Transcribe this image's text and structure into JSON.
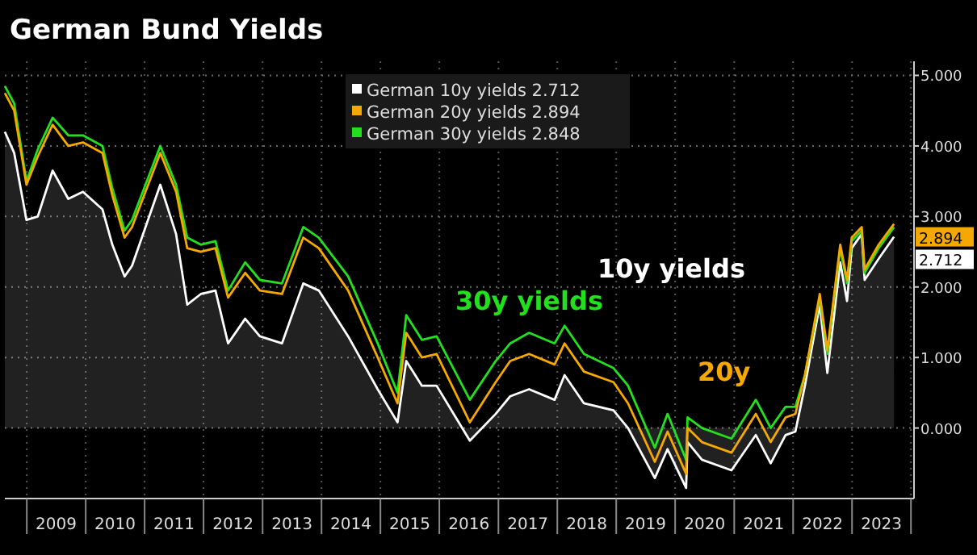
{
  "chart_data": {
    "type": "line",
    "title": "German Bund Yields",
    "x": [
      "2008-08-18",
      "2008-10-15",
      "2008-12-30",
      "2009-03-10",
      "2009-06-10",
      "2009-09-15",
      "2009-12-15",
      "2010-04-15",
      "2010-06-15",
      "2010-08-30",
      "2010-10-15",
      "2011-04-08",
      "2011-07-15",
      "2011-09-22",
      "2011-12-15",
      "2012-03-15",
      "2012-06-01",
      "2012-09-15",
      "2012-12-15",
      "2013-05-01",
      "2013-09-10",
      "2013-12-15",
      "2014-06-15",
      "2014-12-15",
      "2015-04-17",
      "2015-06-10",
      "2015-09-15",
      "2015-12-15",
      "2016-07-08",
      "2016-12-15",
      "2017-03-15",
      "2017-07-10",
      "2017-12-15",
      "2018-02-15",
      "2018-06-15",
      "2018-12-15",
      "2019-03-15",
      "2019-08-28",
      "2019-11-15",
      "2020-03-09",
      "2020-03-18",
      "2020-06-15",
      "2020-12-15",
      "2021-05-15",
      "2021-08-15",
      "2021-11-15",
      "2022-01-15",
      "2022-03-15",
      "2022-06-15",
      "2022-08-01",
      "2022-10-20",
      "2022-12-01",
      "2022-12-30",
      "2023-03-02",
      "2023-03-20",
      "2023-06-15",
      "2023-09-18"
    ],
    "series": [
      {
        "name": "German 10y yields 2.712",
        "type": "area",
        "color": "#ffffff",
        "values": [
          4.2,
          3.9,
          2.95,
          3.0,
          3.65,
          3.25,
          3.35,
          3.1,
          2.6,
          2.15,
          2.3,
          3.45,
          2.75,
          1.75,
          1.9,
          1.95,
          1.2,
          1.55,
          1.3,
          1.2,
          2.05,
          1.95,
          1.3,
          0.55,
          0.08,
          0.95,
          0.6,
          0.6,
          -0.18,
          0.2,
          0.45,
          0.55,
          0.4,
          0.75,
          0.35,
          0.25,
          0.0,
          -0.71,
          -0.3,
          -0.85,
          -0.2,
          -0.45,
          -0.6,
          -0.1,
          -0.5,
          -0.1,
          -0.05,
          0.6,
          1.75,
          0.78,
          2.35,
          1.8,
          2.55,
          2.75,
          2.1,
          2.4,
          2.712
        ],
        "value_labels": [
          null,
          null,
          null,
          null,
          null,
          null,
          null,
          null,
          null,
          null,
          null,
          null,
          null,
          null,
          null,
          null,
          null,
          null,
          null,
          null,
          null,
          null,
          null,
          null,
          null,
          null,
          null,
          null,
          null,
          null,
          null,
          null,
          null,
          null,
          null,
          null,
          null,
          null,
          null,
          null,
          null,
          null,
          null,
          null,
          null,
          null,
          null,
          null,
          null,
          null,
          null,
          null,
          null,
          null,
          null,
          null,
          "2.712"
        ]
      },
      {
        "name": "German 20y yields 2.894",
        "type": "line",
        "color": "#f5a800",
        "values": [
          4.75,
          4.5,
          3.45,
          3.85,
          4.3,
          4.0,
          4.05,
          3.9,
          3.3,
          2.7,
          2.85,
          3.9,
          3.35,
          2.55,
          2.5,
          2.55,
          1.85,
          2.2,
          1.95,
          1.9,
          2.7,
          2.55,
          1.95,
          1.0,
          0.35,
          1.35,
          1.0,
          1.05,
          0.08,
          0.65,
          0.95,
          1.05,
          0.9,
          1.2,
          0.8,
          0.65,
          0.35,
          -0.48,
          -0.05,
          -0.65,
          0.0,
          -0.2,
          -0.35,
          0.2,
          -0.2,
          0.15,
          0.2,
          0.75,
          1.9,
          1.1,
          2.6,
          2.1,
          2.7,
          2.85,
          2.25,
          2.6,
          2.894
        ],
        "value_labels": [
          null,
          null,
          null,
          null,
          null,
          null,
          null,
          null,
          null,
          null,
          null,
          null,
          null,
          null,
          null,
          null,
          null,
          null,
          null,
          null,
          null,
          null,
          null,
          null,
          null,
          null,
          null,
          null,
          null,
          null,
          null,
          null,
          null,
          null,
          null,
          null,
          null,
          null,
          null,
          null,
          null,
          null,
          null,
          null,
          null,
          null,
          null,
          null,
          null,
          null,
          null,
          null,
          null,
          null,
          null,
          null,
          "2.894"
        ]
      },
      {
        "name": "German 30y yields 2.848",
        "type": "line",
        "color": "#22e01e",
        "values": [
          4.85,
          4.6,
          3.5,
          3.95,
          4.4,
          4.15,
          4.15,
          4.0,
          3.4,
          2.8,
          2.95,
          4.0,
          3.45,
          2.7,
          2.6,
          2.65,
          1.95,
          2.35,
          2.1,
          2.05,
          2.85,
          2.7,
          2.15,
          1.2,
          0.5,
          1.6,
          1.25,
          1.3,
          0.4,
          0.95,
          1.2,
          1.35,
          1.2,
          1.45,
          1.05,
          0.85,
          0.6,
          -0.28,
          0.2,
          -0.45,
          0.15,
          0.0,
          -0.15,
          0.4,
          0.0,
          0.3,
          0.3,
          0.75,
          1.85,
          1.05,
          2.55,
          2.05,
          2.65,
          2.8,
          2.2,
          2.55,
          2.848
        ]
      }
    ],
    "xlim": [
      "2008-08-18",
      "2024-01-20"
    ],
    "xticks": [
      {
        "value": "2009-01-01",
        "label": null
      },
      {
        "value": "2009-07-02",
        "label": "2009"
      },
      {
        "value": "2010-01-01",
        "label": null
      },
      {
        "value": "2010-07-02",
        "label": "2010"
      },
      {
        "value": "2011-01-01",
        "label": null
      },
      {
        "value": "2011-07-02",
        "label": "2011"
      },
      {
        "value": "2012-01-01",
        "label": null
      },
      {
        "value": "2012-07-02",
        "label": "2012"
      },
      {
        "value": "2013-01-01",
        "label": null
      },
      {
        "value": "2013-07-02",
        "label": "2013"
      },
      {
        "value": "2014-01-01",
        "label": null
      },
      {
        "value": "2014-07-02",
        "label": "2014"
      },
      {
        "value": "2015-01-01",
        "label": null
      },
      {
        "value": "2015-07-02",
        "label": "2015"
      },
      {
        "value": "2016-01-01",
        "label": null
      },
      {
        "value": "2016-07-02",
        "label": "2016"
      },
      {
        "value": "2017-01-01",
        "label": null
      },
      {
        "value": "2017-07-02",
        "label": "2017"
      },
      {
        "value": "2018-01-01",
        "label": null
      },
      {
        "value": "2018-07-02",
        "label": "2018"
      },
      {
        "value": "2019-01-01",
        "label": null
      },
      {
        "value": "2019-07-02",
        "label": "2019"
      },
      {
        "value": "2020-01-01",
        "label": null
      },
      {
        "value": "2020-07-02",
        "label": "2020"
      },
      {
        "value": "2021-01-01",
        "label": null
      },
      {
        "value": "2021-07-02",
        "label": "2021"
      },
      {
        "value": "2022-01-01",
        "label": null
      },
      {
        "value": "2022-07-02",
        "label": "2022"
      },
      {
        "value": "2023-01-01",
        "label": null
      },
      {
        "value": "2023-07-02",
        "label": "2023"
      },
      {
        "value": "2024-01-01",
        "label": null
      }
    ],
    "ylim": [
      -1,
      5.2
    ],
    "yticks": [
      {
        "value": 0,
        "label": "0.000"
      },
      {
        "value": 1,
        "label": "1.000"
      },
      {
        "value": 2,
        "label": "2.000"
      },
      {
        "value": 3,
        "label": "3.000"
      },
      {
        "value": 4,
        "label": "4.000"
      },
      {
        "value": 5,
        "label": "5.000"
      }
    ],
    "grid": true,
    "legend": "top",
    "annotations": [
      "10y yields",
      "30y yields",
      "20y"
    ]
  }
}
